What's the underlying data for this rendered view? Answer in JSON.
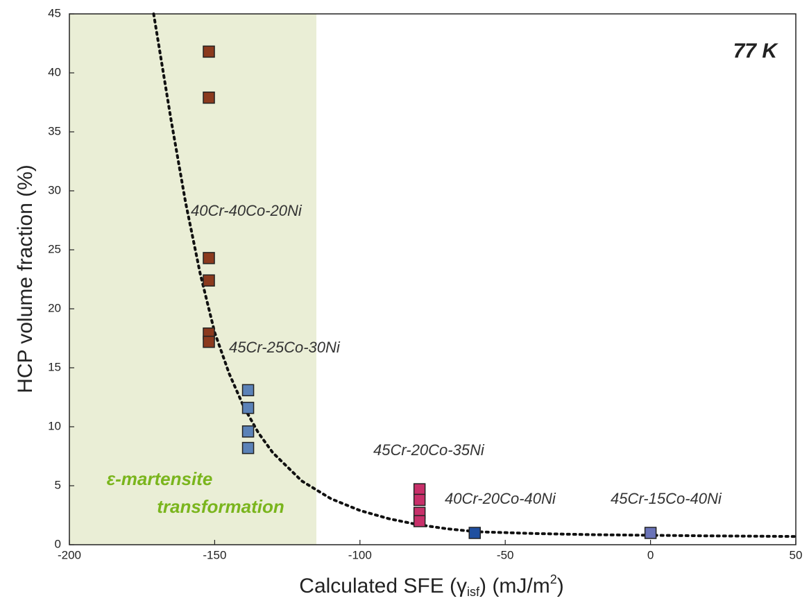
{
  "chart_data": {
    "type": "scatter",
    "annotation": "77 K",
    "ylabel": "HCP volume fraction (%)",
    "xlabel_parts": [
      "Calculated SFE (γ",
      "isf",
      ") (mJ/m",
      "2",
      ")"
    ],
    "xlim": [
      -200,
      50
    ],
    "ylim": [
      0,
      45
    ],
    "xticks": [
      -200,
      -150,
      -100,
      -50,
      0,
      50
    ],
    "yticks": [
      0,
      5,
      10,
      15,
      20,
      25,
      30,
      35,
      40,
      45
    ],
    "shaded_region": {
      "xlim": [
        -200,
        -115
      ],
      "color": "#eaeed6",
      "label": [
        "ε-martensite",
        "transformation"
      ],
      "label_color": "#7ab51d"
    },
    "series": [
      {
        "name": "40Cr-40Co-20Ni",
        "color": "#8b3a1e",
        "x": [
          -152,
          -152,
          -152,
          -152,
          -152,
          -152
        ],
        "values": [
          41.8,
          37.9,
          24.3,
          22.4,
          17.9,
          17.2
        ]
      },
      {
        "name": "45Cr-25Co-30Ni",
        "color": "#5b82b8",
        "x": [
          -138.5,
          -138.5,
          -138.5,
          -138.5
        ],
        "values": [
          13.1,
          11.6,
          9.6,
          8.2
        ]
      },
      {
        "name": "45Cr-20Co-35Ni",
        "color": "#c8306a",
        "x": [
          -79.5,
          -79.5,
          -79.5,
          -79.5
        ],
        "values": [
          4.7,
          3.8,
          2.7,
          2.0
        ]
      },
      {
        "name": "40Cr-20Co-40Ni",
        "color": "#1f4fa0",
        "x": [
          -60.5
        ],
        "values": [
          1.0
        ]
      },
      {
        "name": "45Cr-15Co-40Ni",
        "color": "#6a73b8",
        "x": [
          0
        ],
        "values": [
          1.0
        ]
      }
    ],
    "curve": {
      "color": "#111111",
      "x": [
        -171,
        -165,
        -160,
        -155,
        -150,
        -145,
        -140,
        -135,
        -130,
        -120,
        -110,
        -100,
        -90,
        -80,
        -70,
        -60,
        -40,
        -20,
        0,
        20,
        50
      ],
      "values": [
        45,
        36,
        29,
        23,
        18,
        14.5,
        11.7,
        9.5,
        7.8,
        5.4,
        3.9,
        2.9,
        2.2,
        1.7,
        1.35,
        1.1,
        0.95,
        0.85,
        0.8,
        0.75,
        0.7
      ]
    }
  }
}
